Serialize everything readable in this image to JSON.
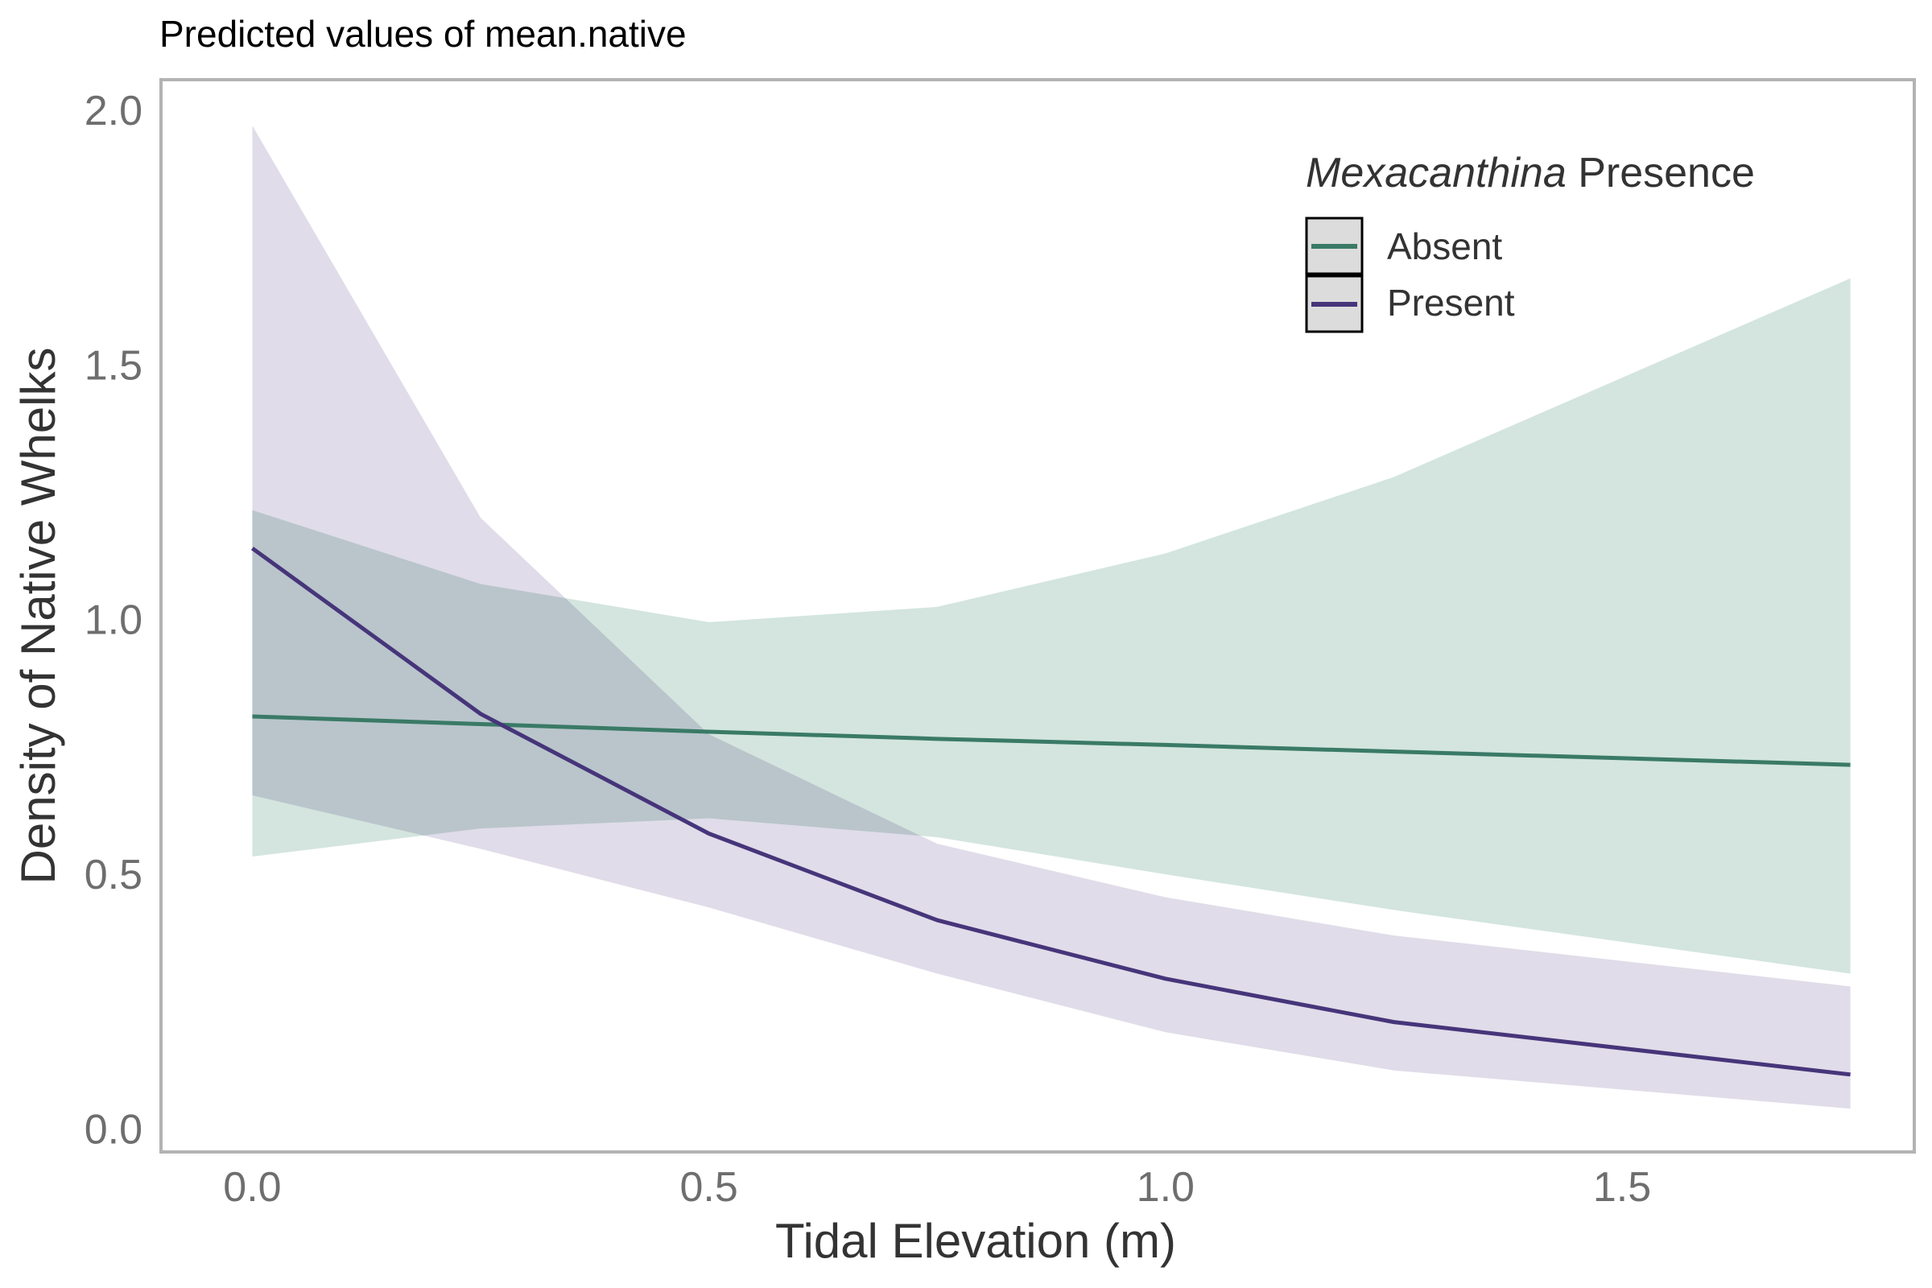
{
  "chart_data": {
    "type": "line",
    "title": "Predicted values of mean.native",
    "xlabel": "Tidal Elevation (m)",
    "ylabel": "Density of Native Whelks",
    "xlim": [
      -0.1,
      1.82
    ],
    "ylim": [
      -0.045,
      2.06
    ],
    "xticks": [
      0.0,
      0.5,
      1.0,
      1.5
    ],
    "xtick_labels": [
      "0.0",
      "0.5",
      "1.0",
      "1.5"
    ],
    "yticks": [
      0.0,
      0.5,
      1.0,
      1.5,
      2.0
    ],
    "ytick_labels": [
      "0.0",
      "0.5",
      "1.0",
      "1.5",
      "2.0"
    ],
    "grid": false,
    "legend": {
      "title_italic": "Mexacanthina",
      "title_rest": " Presence",
      "position": "top-right inside"
    },
    "x": [
      0.0,
      0.25,
      0.5,
      0.75,
      1.0,
      1.25,
      1.75
    ],
    "series": [
      {
        "name": "Absent",
        "color": "#3a7a66",
        "fill": "#b5d3c8",
        "values": [
          0.81,
          0.795,
          0.78,
          0.766,
          0.754,
          0.741,
          0.715
        ],
        "lower": [
          0.535,
          0.59,
          0.61,
          0.573,
          0.5,
          0.43,
          0.305
        ],
        "upper": [
          1.215,
          1.07,
          0.995,
          1.025,
          1.13,
          1.28,
          1.67
        ]
      },
      {
        "name": "Present",
        "color": "#46357a",
        "fill": "#cbc4da",
        "values": [
          1.14,
          0.815,
          0.58,
          0.41,
          0.295,
          0.21,
          0.107
        ],
        "lower": [
          0.655,
          0.55,
          0.435,
          0.305,
          0.19,
          0.115,
          0.04
        ],
        "upper": [
          1.97,
          1.2,
          0.775,
          0.56,
          0.455,
          0.38,
          0.28
        ]
      }
    ]
  }
}
